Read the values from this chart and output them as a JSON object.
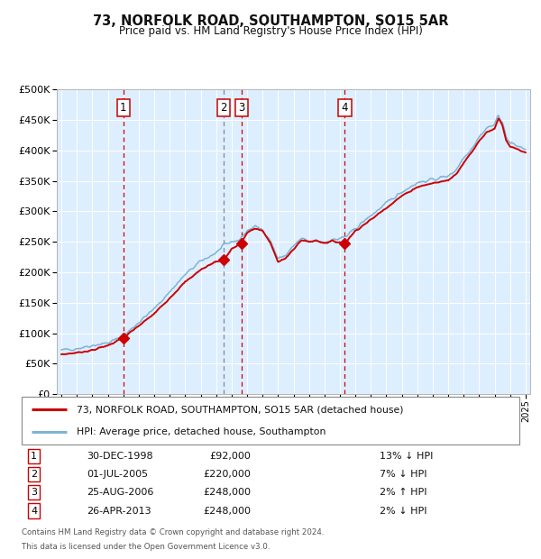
{
  "title": "73, NORFOLK ROAD, SOUTHAMPTON, SO15 5AR",
  "subtitle": "Price paid vs. HM Land Registry's House Price Index (HPI)",
  "legend_line1": "73, NORFOLK ROAD, SOUTHAMPTON, SO15 5AR (detached house)",
  "legend_line2": "HPI: Average price, detached house, Southampton",
  "footer1": "Contains HM Land Registry data © Crown copyright and database right 2024.",
  "footer2": "This data is licensed under the Open Government Licence v3.0.",
  "transactions": [
    {
      "id": 1,
      "date_label": "30-DEC-1998",
      "price_label": "£92,000",
      "pct_label": "13% ↓ HPI",
      "x": 1999.0
    },
    {
      "id": 2,
      "date_label": "01-JUL-2005",
      "price_label": "£220,000",
      "pct_label": "7% ↓ HPI",
      "x": 2005.5
    },
    {
      "id": 3,
      "date_label": "25-AUG-2006",
      "price_label": "£248,000",
      "pct_label": "2% ↑ HPI",
      "x": 2006.65
    },
    {
      "id": 4,
      "date_label": "26-APR-2013",
      "price_label": "£248,000",
      "pct_label": "2% ↓ HPI",
      "x": 2013.32
    }
  ],
  "hpi_color": "#7fb3d3",
  "price_color": "#cc0000",
  "marker_color": "#cc0000",
  "vline_color_red": "#cc0000",
  "vline_color_grey": "#888888",
  "bg_color": "#ddeeff",
  "grid_color": "#ffffff",
  "box_edge_color": "#cc0000",
  "yticks": [
    0,
    50000,
    100000,
    150000,
    200000,
    250000,
    300000,
    350000,
    400000,
    450000,
    500000
  ],
  "xlim_start": 1994.7,
  "xlim_end": 2025.3,
  "hpi_anchors": [
    [
      1995.0,
      72000
    ],
    [
      1996.0,
      75000
    ],
    [
      1997.0,
      80000
    ],
    [
      1998.0,
      84000
    ],
    [
      1999.0,
      95000
    ],
    [
      2000.0,
      118000
    ],
    [
      2001.0,
      140000
    ],
    [
      2002.0,
      168000
    ],
    [
      2003.0,
      196000
    ],
    [
      2004.0,
      218000
    ],
    [
      2005.0,
      232000
    ],
    [
      2005.5,
      244000
    ],
    [
      2006.0,
      250000
    ],
    [
      2006.5,
      253000
    ],
    [
      2007.0,
      268000
    ],
    [
      2007.5,
      275000
    ],
    [
      2008.0,
      270000
    ],
    [
      2008.5,
      252000
    ],
    [
      2009.0,
      222000
    ],
    [
      2009.5,
      228000
    ],
    [
      2010.0,
      243000
    ],
    [
      2010.5,
      255000
    ],
    [
      2011.0,
      250000
    ],
    [
      2011.5,
      252000
    ],
    [
      2012.0,
      249000
    ],
    [
      2012.5,
      253000
    ],
    [
      2013.0,
      255000
    ],
    [
      2013.5,
      260000
    ],
    [
      2014.0,
      272000
    ],
    [
      2015.0,
      293000
    ],
    [
      2016.0,
      313000
    ],
    [
      2017.0,
      332000
    ],
    [
      2018.0,
      347000
    ],
    [
      2019.0,
      352000
    ],
    [
      2020.0,
      358000
    ],
    [
      2020.5,
      368000
    ],
    [
      2021.0,
      388000
    ],
    [
      2021.5,
      403000
    ],
    [
      2022.0,
      422000
    ],
    [
      2022.5,
      437000
    ],
    [
      2023.0,
      442000
    ],
    [
      2023.25,
      458000
    ],
    [
      2023.5,
      447000
    ],
    [
      2023.75,
      422000
    ],
    [
      2024.0,
      412000
    ],
    [
      2024.5,
      407000
    ],
    [
      2025.0,
      402000
    ]
  ],
  "pp_anchors": [
    [
      1995.0,
      65000
    ],
    [
      1996.0,
      68000
    ],
    [
      1997.0,
      72000
    ],
    [
      1998.0,
      80000
    ],
    [
      1999.0,
      92000
    ],
    [
      2000.0,
      112000
    ],
    [
      2001.0,
      132000
    ],
    [
      2002.0,
      158000
    ],
    [
      2003.0,
      184000
    ],
    [
      2004.0,
      204000
    ],
    [
      2005.0,
      218000
    ],
    [
      2005.5,
      220000
    ],
    [
      2006.0,
      238000
    ],
    [
      2006.65,
      248000
    ],
    [
      2007.0,
      265000
    ],
    [
      2007.5,
      272000
    ],
    [
      2008.0,
      268000
    ],
    [
      2008.5,
      248000
    ],
    [
      2009.0,
      218000
    ],
    [
      2009.5,
      223000
    ],
    [
      2010.0,
      237000
    ],
    [
      2010.5,
      253000
    ],
    [
      2011.0,
      250000
    ],
    [
      2011.5,
      252000
    ],
    [
      2012.0,
      248000
    ],
    [
      2012.5,
      251000
    ],
    [
      2013.32,
      248000
    ],
    [
      2014.0,
      268000
    ],
    [
      2015.0,
      286000
    ],
    [
      2016.0,
      306000
    ],
    [
      2017.0,
      325000
    ],
    [
      2018.0,
      340000
    ],
    [
      2019.0,
      346000
    ],
    [
      2020.0,
      351000
    ],
    [
      2020.5,
      361000
    ],
    [
      2021.0,
      380000
    ],
    [
      2021.5,
      396000
    ],
    [
      2022.0,
      416000
    ],
    [
      2022.5,
      430000
    ],
    [
      2023.0,
      436000
    ],
    [
      2023.25,
      452000
    ],
    [
      2023.5,
      441000
    ],
    [
      2023.75,
      416000
    ],
    [
      2024.0,
      406000
    ],
    [
      2024.5,
      401000
    ],
    [
      2025.0,
      396000
    ]
  ]
}
